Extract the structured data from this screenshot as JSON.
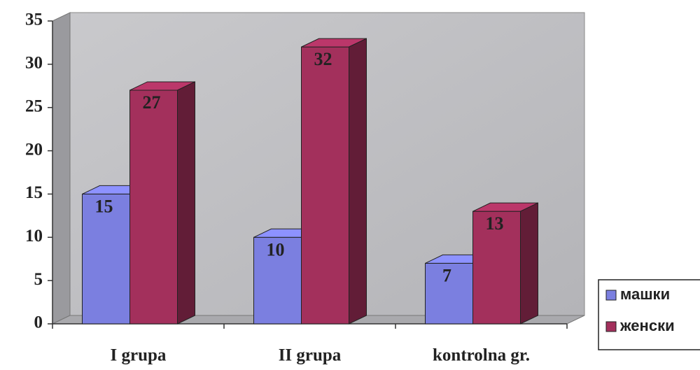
{
  "chart_data": {
    "type": "bar3d",
    "categories": [
      "I grupa",
      "II grupa",
      "kontrolna gr."
    ],
    "series": [
      {
        "name": "машки",
        "color": "#7b7fe0",
        "values": [
          15,
          10,
          7
        ]
      },
      {
        "name": "женски",
        "color": "#a3305c",
        "values": [
          27,
          32,
          13
        ]
      }
    ],
    "ylim": [
      0,
      35
    ],
    "yticks": [
      0,
      5,
      10,
      15,
      20,
      25,
      30,
      35
    ],
    "legend": "right"
  }
}
